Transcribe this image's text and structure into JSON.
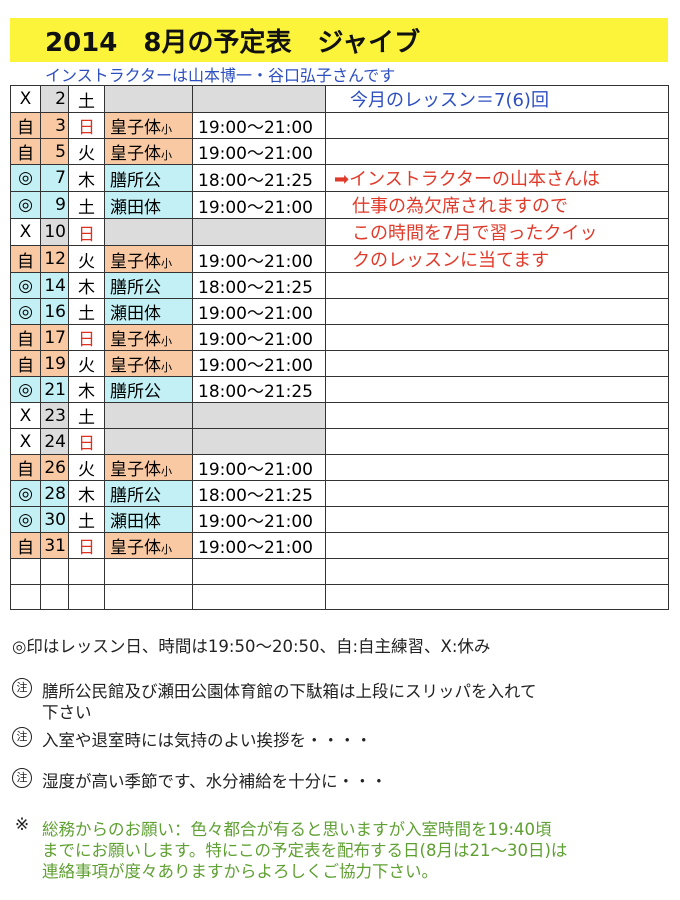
{
  "header": {
    "title": "2014　8月の予定表　ジャイブ",
    "subtitle": "インストラクターは山本博一・谷口弘子さんです"
  },
  "table": {
    "rows": [
      {
        "mark": "X",
        "day": "2",
        "weekday": "土",
        "note": "今月のレッスン＝7(6)回",
        "note_color": "#2d4fc0",
        "fill": "#dcdcdc"
      },
      {
        "mark": "自",
        "day": "3",
        "weekday": "日",
        "weekday_color": "#e03020",
        "venue": "皇子体",
        "venue_suffix": "小",
        "time": "19:00～21:00",
        "fill": "#f8c9a2"
      },
      {
        "mark": "自",
        "day": "5",
        "weekday": "火",
        "venue": "皇子体",
        "venue_suffix": "小",
        "time": "19:00～21:00",
        "fill": "#f8c9a2"
      },
      {
        "mark": "◎",
        "day": "7",
        "weekday": "木",
        "venue": "膳所公",
        "time": "18:00～21:25",
        "fill": "#c2f0f4",
        "note": "➡インストラクターの山本さんは",
        "note_color": "#e03a2a"
      },
      {
        "mark": "◎",
        "day": "9",
        "weekday": "土",
        "venue": "瀬田体",
        "time": "19:00～21:00",
        "fill": "#c2f0f4",
        "note": "　仕事の為欠席されますので",
        "note_color": "#e03a2a"
      },
      {
        "mark": "X",
        "day": "10",
        "weekday": "日",
        "weekday_color": "#e03020",
        "fill": "#dcdcdc",
        "note": "　この時間を7月で習ったクイッ",
        "note_color": "#e03a2a"
      },
      {
        "mark": "自",
        "day": "12",
        "weekday": "火",
        "venue": "皇子体",
        "venue_suffix": "小",
        "time": "19:00～21:00",
        "fill": "#f8c9a2",
        "note": "　クのレッスンに当てます",
        "note_color": "#e03a2a"
      },
      {
        "mark": "◎",
        "day": "14",
        "weekday": "木",
        "venue": "膳所公",
        "time": "18:00～21:25",
        "fill": "#c2f0f4"
      },
      {
        "mark": "◎",
        "day": "16",
        "weekday": "土",
        "venue": "瀬田体",
        "time": "19:00～21:00",
        "fill": "#c2f0f4"
      },
      {
        "mark": "自",
        "day": "17",
        "weekday": "日",
        "weekday_color": "#e03020",
        "venue": "皇子体",
        "venue_suffix": "小",
        "time": "19:00～21:00",
        "fill": "#f8c9a2"
      },
      {
        "mark": "自",
        "day": "19",
        "weekday": "火",
        "venue": "皇子体",
        "venue_suffix": "小",
        "time": "19:00～21:00",
        "fill": "#f8c9a2"
      },
      {
        "mark": "◎",
        "day": "21",
        "weekday": "木",
        "venue": "膳所公",
        "time": "18:00～21:25",
        "fill": "#c2f0f4"
      },
      {
        "mark": "X",
        "day": "23",
        "weekday": "土",
        "fill": "#dcdcdc"
      },
      {
        "mark": "X",
        "day": "24",
        "weekday": "日",
        "weekday_color": "#e03020",
        "fill": "#dcdcdc"
      },
      {
        "mark": "自",
        "day": "26",
        "weekday": "火",
        "venue": "皇子体",
        "venue_suffix": "小",
        "time": "19:00～21:00",
        "fill": "#f8c9a2"
      },
      {
        "mark": "◎",
        "day": "28",
        "weekday": "木",
        "venue": "膳所公",
        "time": "18:00～21:25",
        "fill": "#c2f0f4"
      },
      {
        "mark": "◎",
        "day": "30",
        "weekday": "土",
        "venue": "瀬田体",
        "time": "19:00～21:00",
        "fill": "#c2f0f4"
      },
      {
        "mark": "自",
        "day": "31",
        "weekday": "日",
        "weekday_color": "#e03020",
        "venue": "皇子体",
        "venue_suffix": "小",
        "time": "19:00～21:00",
        "fill": "#f8c9a2"
      },
      {},
      {}
    ]
  },
  "legend": "◎印はレッスン日、時間は19:50～20:50、自:自主練習、X:休み",
  "footnotes": [
    {
      "marker": "注",
      "lines": [
        "膳所公民館及び瀬田公園体育館の下駄箱は上段にスリッパを入れて",
        "下さい"
      ]
    },
    {
      "marker": "注",
      "lines": [
        "入室や退室時には気持のよい挨拶を・・・・"
      ]
    },
    {
      "marker": "注",
      "lines": [
        "湿度が高い季節です、水分補給を十分に・・・"
      ]
    },
    {
      "marker": "※",
      "color": "#5fa032",
      "lines": [
        "総務からのお願い：色々都合が有ると思いますが入室時間を19:40頃",
        "までにお願いします。特にこの予定表を配布する日(8月は21～30日)は",
        "連絡事項が度々ありますからよろしくご協力下さい。"
      ]
    }
  ]
}
